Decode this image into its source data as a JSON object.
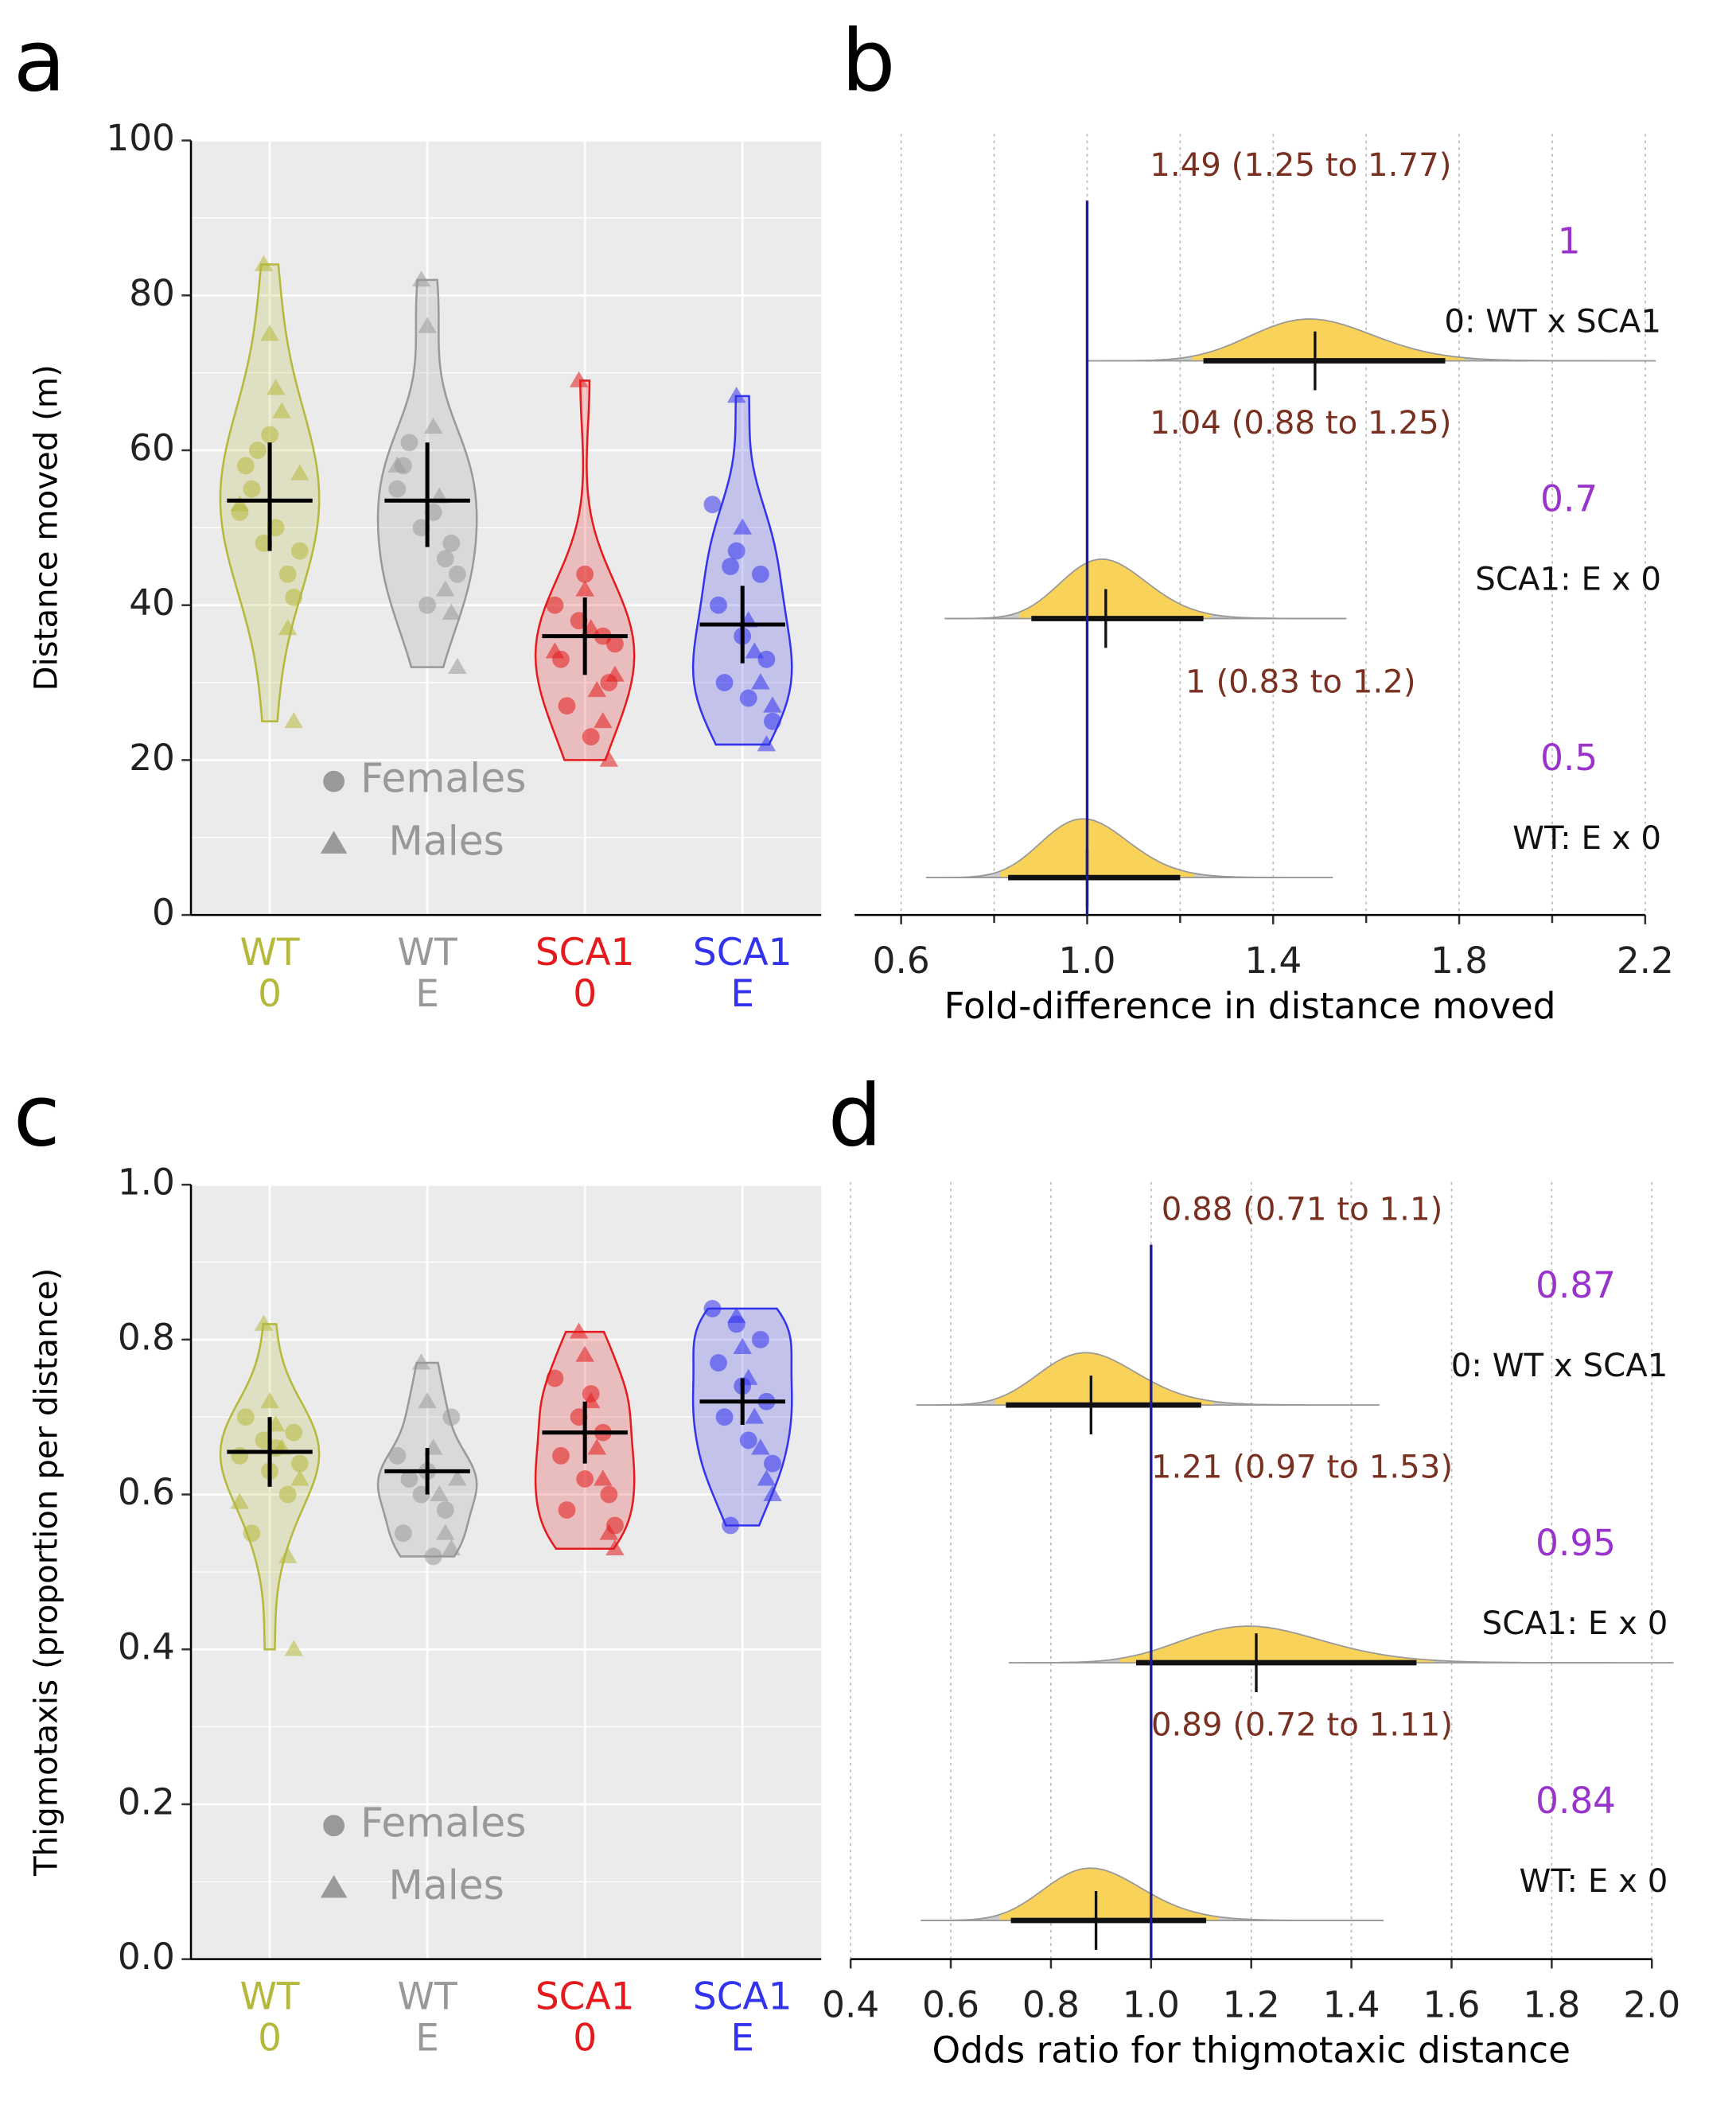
{
  "chart_data": [
    {
      "type": "violin",
      "panel_label": "a",
      "ylabel": "Distance moved (m)",
      "ylim": [
        0,
        100
      ],
      "yticks": [
        0,
        20,
        40,
        60,
        80,
        100
      ],
      "yminor": [
        10,
        30,
        50,
        70,
        90
      ],
      "grid": true,
      "legend_labels": [
        "Females",
        "Males"
      ],
      "legend_color": "#999999",
      "series": [
        {
          "name": "WT",
          "treatment": "0",
          "color": "#b5b83a",
          "mean": 53.5,
          "ci_low": 47,
          "ci_high": 61,
          "females": [
            52,
            48,
            44,
            58,
            62,
            41,
            55,
            50,
            47,
            60
          ],
          "males": [
            84,
            75,
            68,
            65,
            37,
            25,
            57,
            53
          ]
        },
        {
          "name": "WT",
          "treatment": "E",
          "color": "#999999",
          "mean": 53.5,
          "ci_low": 47.5,
          "ci_high": 61,
          "females": [
            55,
            50,
            46,
            58,
            40,
            48,
            61,
            52,
            44
          ],
          "males": [
            82,
            76,
            63,
            54,
            42,
            39,
            32,
            58
          ]
        },
        {
          "name": "SCA1",
          "treatment": "0",
          "color": "#e41a1c",
          "mean": 36,
          "ci_low": 31,
          "ci_high": 41,
          "females": [
            40,
            38,
            36,
            33,
            44,
            30,
            27,
            23,
            35
          ],
          "males": [
            69,
            42,
            37,
            29,
            25,
            20,
            31,
            34
          ]
        },
        {
          "name": "SCA1",
          "treatment": "E",
          "color": "#3333ee",
          "mean": 37.5,
          "ci_low": 32.5,
          "ci_high": 42.5,
          "females": [
            53,
            47,
            44,
            40,
            36,
            33,
            30,
            28,
            25,
            45
          ],
          "males": [
            67,
            50,
            38,
            34,
            30,
            22,
            27
          ]
        }
      ]
    },
    {
      "type": "forest",
      "panel_label": "b",
      "xlabel": "Fold-difference in distance moved",
      "xlim": [
        0.5,
        2.2
      ],
      "xticks": [
        0.6,
        {
          "value": 1,
          "label": "1.0"
        },
        1.4,
        1.8,
        2.2
      ],
      "xminor": [
        0.8,
        1.2,
        1.6,
        2.0
      ],
      "reference": 1,
      "fill_color": "#f9d25a",
      "probability_color": "#9933cc",
      "value_label_color": "#7a3020",
      "rows": [
        {
          "name": "0: WT x SCA1",
          "estimate": 1.49,
          "ci_low": 1.25,
          "ci_high": 1.77,
          "value_label": "1.49 (1.25 to 1.77)",
          "probability": 1
        },
        {
          "name": "SCA1: E x 0",
          "estimate": 1.04,
          "ci_low": 0.88,
          "ci_high": 1.25,
          "value_label": "1.04 (0.88 to 1.25)",
          "probability": 0.7
        },
        {
          "name": "WT: E x 0",
          "estimate": 1,
          "ci_low": 0.83,
          "ci_high": 1.2,
          "value_label": "1 (0.83 to 1.2)",
          "probability": 0.5
        }
      ]
    },
    {
      "type": "violin",
      "panel_label": "c",
      "ylabel": "Thigmotaxis (proportion per distance)",
      "ylim": [
        0,
        1
      ],
      "yticks": [
        {
          "value": 0,
          "label": "0.0"
        },
        0.2,
        0.4,
        0.6,
        0.8,
        {
          "value": 1,
          "label": "1.0"
        }
      ],
      "yminor": [
        0.1,
        0.3,
        0.5,
        0.7,
        0.9
      ],
      "grid": true,
      "legend_labels": [
        "Females",
        "Males"
      ],
      "legend_color": "#999999",
      "series": [
        {
          "name": "WT",
          "treatment": "0",
          "color": "#b5b83a",
          "mean": 0.655,
          "ci_low": 0.61,
          "ci_high": 0.7,
          "females": [
            0.65,
            0.67,
            0.6,
            0.7,
            0.63,
            0.68,
            0.55,
            0.66,
            0.64
          ],
          "males": [
            0.82,
            0.72,
            0.69,
            0.66,
            0.52,
            0.4,
            0.62,
            0.59
          ]
        },
        {
          "name": "WT",
          "treatment": "E",
          "color": "#999999",
          "mean": 0.63,
          "ci_low": 0.6,
          "ci_high": 0.66,
          "females": [
            0.65,
            0.6,
            0.58,
            0.55,
            0.63,
            0.7,
            0.62,
            0.52
          ],
          "males": [
            0.77,
            0.72,
            0.66,
            0.6,
            0.55,
            0.53,
            0.62
          ]
        },
        {
          "name": "SCA1",
          "treatment": "0",
          "color": "#e41a1c",
          "mean": 0.68,
          "ci_low": 0.64,
          "ci_high": 0.72,
          "females": [
            0.75,
            0.7,
            0.68,
            0.65,
            0.62,
            0.6,
            0.58,
            0.73,
            0.56
          ],
          "males": [
            0.81,
            0.78,
            0.72,
            0.66,
            0.62,
            0.55,
            0.53
          ]
        },
        {
          "name": "SCA1",
          "treatment": "E",
          "color": "#3333ee",
          "mean": 0.72,
          "ci_low": 0.69,
          "ci_high": 0.75,
          "females": [
            0.84,
            0.82,
            0.8,
            0.77,
            0.74,
            0.72,
            0.7,
            0.67,
            0.64,
            0.56
          ],
          "males": [
            0.83,
            0.79,
            0.75,
            0.7,
            0.66,
            0.62,
            0.6
          ]
        }
      ]
    },
    {
      "type": "forest",
      "panel_label": "d",
      "xlabel": "Odds ratio for thigmotaxic distance",
      "xlim": [
        0.4,
        2.0
      ],
      "xticks": [
        0.4,
        0.6,
        0.8,
        {
          "value": 1,
          "label": "1.0"
        },
        1.2,
        1.4,
        1.6,
        1.8,
        {
          "value": 2,
          "label": "2.0"
        }
      ],
      "xminor": [],
      "reference": 1,
      "fill_color": "#f9d25a",
      "probability_color": "#9933cc",
      "value_label_color": "#7a3020",
      "rows": [
        {
          "name": "0: WT x SCA1",
          "estimate": 0.88,
          "ci_low": 0.71,
          "ci_high": 1.1,
          "value_label": "0.88 (0.71 to 1.1)",
          "probability": 0.87
        },
        {
          "name": "SCA1: E x 0",
          "estimate": 1.21,
          "ci_low": 0.97,
          "ci_high": 1.53,
          "value_label": "1.21 (0.97 to 1.53)",
          "probability": 0.95
        },
        {
          "name": "WT: E x 0",
          "estimate": 0.89,
          "ci_low": 0.72,
          "ci_high": 1.11,
          "value_label": "0.89 (0.72 to 1.11)",
          "probability": 0.84
        }
      ]
    }
  ]
}
